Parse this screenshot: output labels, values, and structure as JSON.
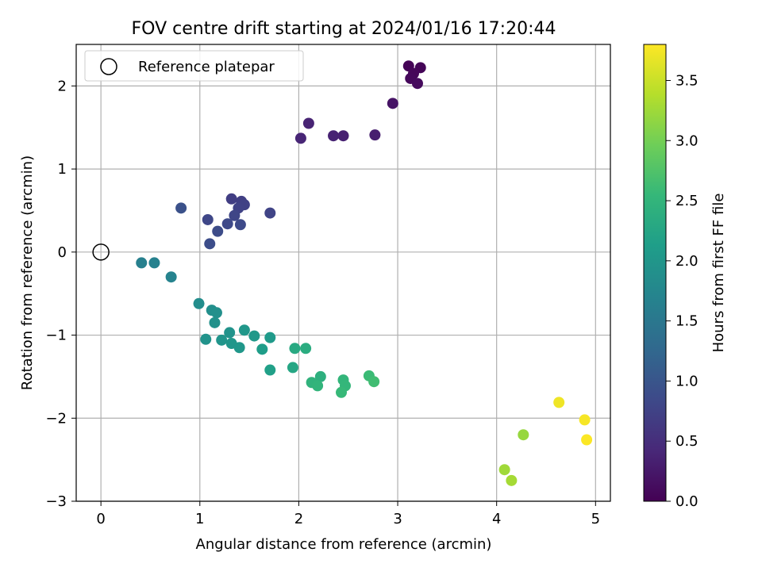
{
  "chart_data": {
    "type": "scatter",
    "title": "FOV centre drift starting at 2024/01/16 17:20:44",
    "xlabel": "Angular distance from reference (arcmin)",
    "ylabel": "Rotation from reference (arcmin)",
    "xlim": [
      -0.25,
      5.15
    ],
    "ylim": [
      -3.0,
      2.5
    ],
    "xticks": [
      0,
      1,
      2,
      3,
      4,
      5
    ],
    "yticks": [
      -3,
      -2,
      -1,
      0,
      1,
      2
    ],
    "grid": true,
    "legend": {
      "position": "top-left",
      "entries": [
        "Reference platepar"
      ]
    },
    "reference_point": {
      "x": 0,
      "y": 0,
      "marker": "hollow-circle"
    },
    "colorbar": {
      "label": "Hours from first FF file",
      "colormap": "viridis",
      "range": [
        0.0,
        3.8
      ],
      "ticks": [
        0.0,
        0.5,
        1.0,
        1.5,
        2.0,
        2.5,
        3.0,
        3.5
      ],
      "tick_labels": [
        "0.0",
        "0.5",
        "1.0",
        "1.5",
        "2.0",
        "2.5",
        "3.0",
        "3.5"
      ]
    },
    "points": [
      {
        "x": 3.11,
        "y": 2.24,
        "t": 0.02
      },
      {
        "x": 3.23,
        "y": 2.22,
        "t": 0.04
      },
      {
        "x": 3.16,
        "y": 2.15,
        "t": 0.06
      },
      {
        "x": 3.13,
        "y": 2.09,
        "t": 0.08
      },
      {
        "x": 3.2,
        "y": 2.03,
        "t": 0.1
      },
      {
        "x": 2.95,
        "y": 1.79,
        "t": 0.2
      },
      {
        "x": 2.77,
        "y": 1.41,
        "t": 0.32
      },
      {
        "x": 2.45,
        "y": 1.4,
        "t": 0.34
      },
      {
        "x": 2.35,
        "y": 1.4,
        "t": 0.36
      },
      {
        "x": 2.1,
        "y": 1.55,
        "t": 0.38
      },
      {
        "x": 2.02,
        "y": 1.37,
        "t": 0.4
      },
      {
        "x": 1.32,
        "y": 0.64,
        "t": 0.7
      },
      {
        "x": 1.42,
        "y": 0.61,
        "t": 0.72
      },
      {
        "x": 1.45,
        "y": 0.57,
        "t": 0.74
      },
      {
        "x": 1.39,
        "y": 0.53,
        "t": 0.76
      },
      {
        "x": 1.71,
        "y": 0.47,
        "t": 0.78
      },
      {
        "x": 1.35,
        "y": 0.44,
        "t": 0.8
      },
      {
        "x": 1.08,
        "y": 0.39,
        "t": 0.82
      },
      {
        "x": 1.28,
        "y": 0.34,
        "t": 0.84
      },
      {
        "x": 1.41,
        "y": 0.33,
        "t": 0.86
      },
      {
        "x": 1.18,
        "y": 0.25,
        "t": 0.88
      },
      {
        "x": 1.1,
        "y": 0.1,
        "t": 0.9
      },
      {
        "x": 0.81,
        "y": 0.53,
        "t": 0.95
      },
      {
        "x": 0.41,
        "y": -0.13,
        "t": 1.65
      },
      {
        "x": 0.54,
        "y": -0.13,
        "t": 1.68
      },
      {
        "x": 0.71,
        "y": -0.3,
        "t": 1.7
      },
      {
        "x": 0.99,
        "y": -0.62,
        "t": 1.85
      },
      {
        "x": 1.12,
        "y": -0.7,
        "t": 1.88
      },
      {
        "x": 1.17,
        "y": -0.73,
        "t": 1.9
      },
      {
        "x": 1.15,
        "y": -0.85,
        "t": 1.92
      },
      {
        "x": 1.3,
        "y": -0.97,
        "t": 1.95
      },
      {
        "x": 1.45,
        "y": -0.94,
        "t": 2.0
      },
      {
        "x": 1.55,
        "y": -1.01,
        "t": 2.02
      },
      {
        "x": 1.71,
        "y": -1.03,
        "t": 2.05
      },
      {
        "x": 1.06,
        "y": -1.05,
        "t": 1.95
      },
      {
        "x": 1.22,
        "y": -1.06,
        "t": 1.97
      },
      {
        "x": 1.32,
        "y": -1.1,
        "t": 1.99
      },
      {
        "x": 1.4,
        "y": -1.15,
        "t": 2.01
      },
      {
        "x": 1.63,
        "y": -1.17,
        "t": 2.1
      },
      {
        "x": 1.96,
        "y": -1.16,
        "t": 2.3
      },
      {
        "x": 2.07,
        "y": -1.16,
        "t": 2.35
      },
      {
        "x": 1.71,
        "y": -1.42,
        "t": 2.15
      },
      {
        "x": 1.94,
        "y": -1.39,
        "t": 2.25
      },
      {
        "x": 2.22,
        "y": -1.5,
        "t": 2.4
      },
      {
        "x": 2.13,
        "y": -1.57,
        "t": 2.45
      },
      {
        "x": 2.19,
        "y": -1.61,
        "t": 2.48
      },
      {
        "x": 2.45,
        "y": -1.54,
        "t": 2.5
      },
      {
        "x": 2.47,
        "y": -1.61,
        "t": 2.52
      },
      {
        "x": 2.43,
        "y": -1.69,
        "t": 2.55
      },
      {
        "x": 2.71,
        "y": -1.49,
        "t": 2.58
      },
      {
        "x": 2.76,
        "y": -1.56,
        "t": 2.62
      },
      {
        "x": 4.27,
        "y": -2.2,
        "t": 3.2
      },
      {
        "x": 4.08,
        "y": -2.62,
        "t": 3.25
      },
      {
        "x": 4.15,
        "y": -2.75,
        "t": 3.28
      },
      {
        "x": 4.63,
        "y": -1.81,
        "t": 3.72
      },
      {
        "x": 4.89,
        "y": -2.02,
        "t": 3.76
      },
      {
        "x": 4.91,
        "y": -2.26,
        "t": 3.79
      }
    ]
  }
}
